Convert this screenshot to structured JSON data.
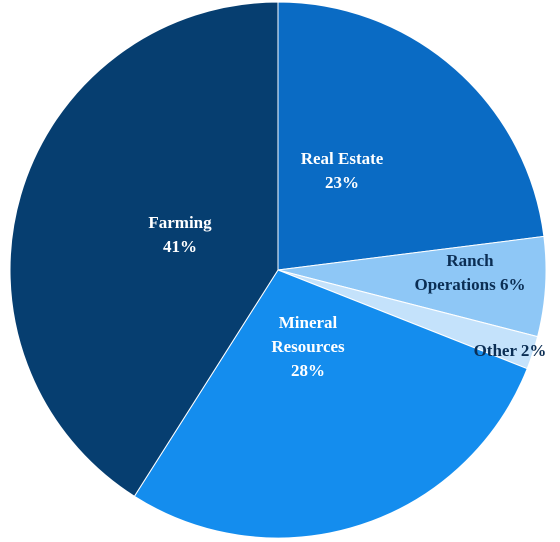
{
  "chart_data": {
    "type": "pie",
    "title": "",
    "slices": [
      {
        "label_lines": [
          "Real Estate",
          "23%"
        ],
        "value": 23,
        "color": "#0a6bc4",
        "label_color": "#ffffff"
      },
      {
        "label_lines": [
          "Ranch",
          "Operations 6%"
        ],
        "value": 6,
        "color": "#8ec7f6",
        "label_color": "#0b2e54"
      },
      {
        "label_lines": [
          "Other 2%"
        ],
        "value": 2,
        "color": "#c4e2fb",
        "label_color": "#0b2e54"
      },
      {
        "label_lines": [
          "Mineral",
          "Resources",
          "28%"
        ],
        "value": 28,
        "color": "#148dee",
        "label_color": "#ffffff"
      },
      {
        "label_lines": [
          "Farming",
          "41%"
        ],
        "value": 41,
        "color": "#063e70",
        "label_color": "#ffffff"
      }
    ],
    "legend": "none",
    "start": "12 o'clock, clockwise"
  }
}
